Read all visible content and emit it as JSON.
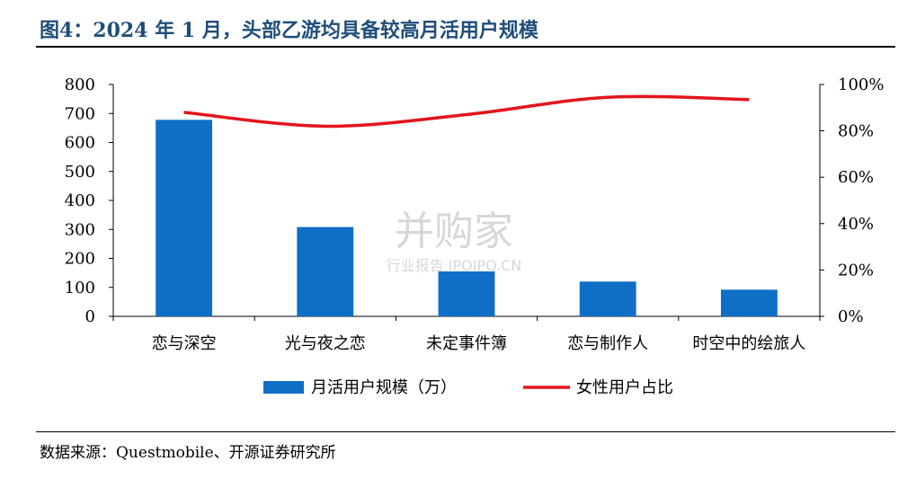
{
  "figure": {
    "title": "图4：2024 年 1 月，头部乙游均具备较高月活用户规模",
    "source": "数据来源：Questmobile、开源证券研究所"
  },
  "watermark": {
    "main": "并购家",
    "sub": "行业报告 IPOIPO.CN"
  },
  "colors": {
    "bar": "#0f6fc6",
    "line": "#e3151c",
    "title": "#1f4e79"
  },
  "chart_data": {
    "type": "bar",
    "categories": [
      "恋与深空",
      "光与夜之恋",
      "未定事件簿",
      "恋与制作人",
      "时空中的绘旅人"
    ],
    "series": [
      {
        "name": "月活用户规模（万）",
        "type": "bar",
        "axis": "left",
        "values": [
          678,
          308,
          155,
          120,
          92
        ]
      },
      {
        "name": "女性用户占比",
        "type": "line",
        "axis": "right",
        "values": [
          0.88,
          0.82,
          0.87,
          0.945,
          0.935
        ]
      }
    ],
    "y_left": {
      "min": 0,
      "max": 800,
      "ticks": [
        "0",
        "100",
        "200",
        "300",
        "400",
        "500",
        "600",
        "700",
        "800"
      ]
    },
    "y_right": {
      "min": 0,
      "max": 1,
      "ticks": [
        "0%",
        "20%",
        "40%",
        "60%",
        "80%",
        "100%"
      ]
    },
    "legend_position": "bottom",
    "grid": false
  }
}
